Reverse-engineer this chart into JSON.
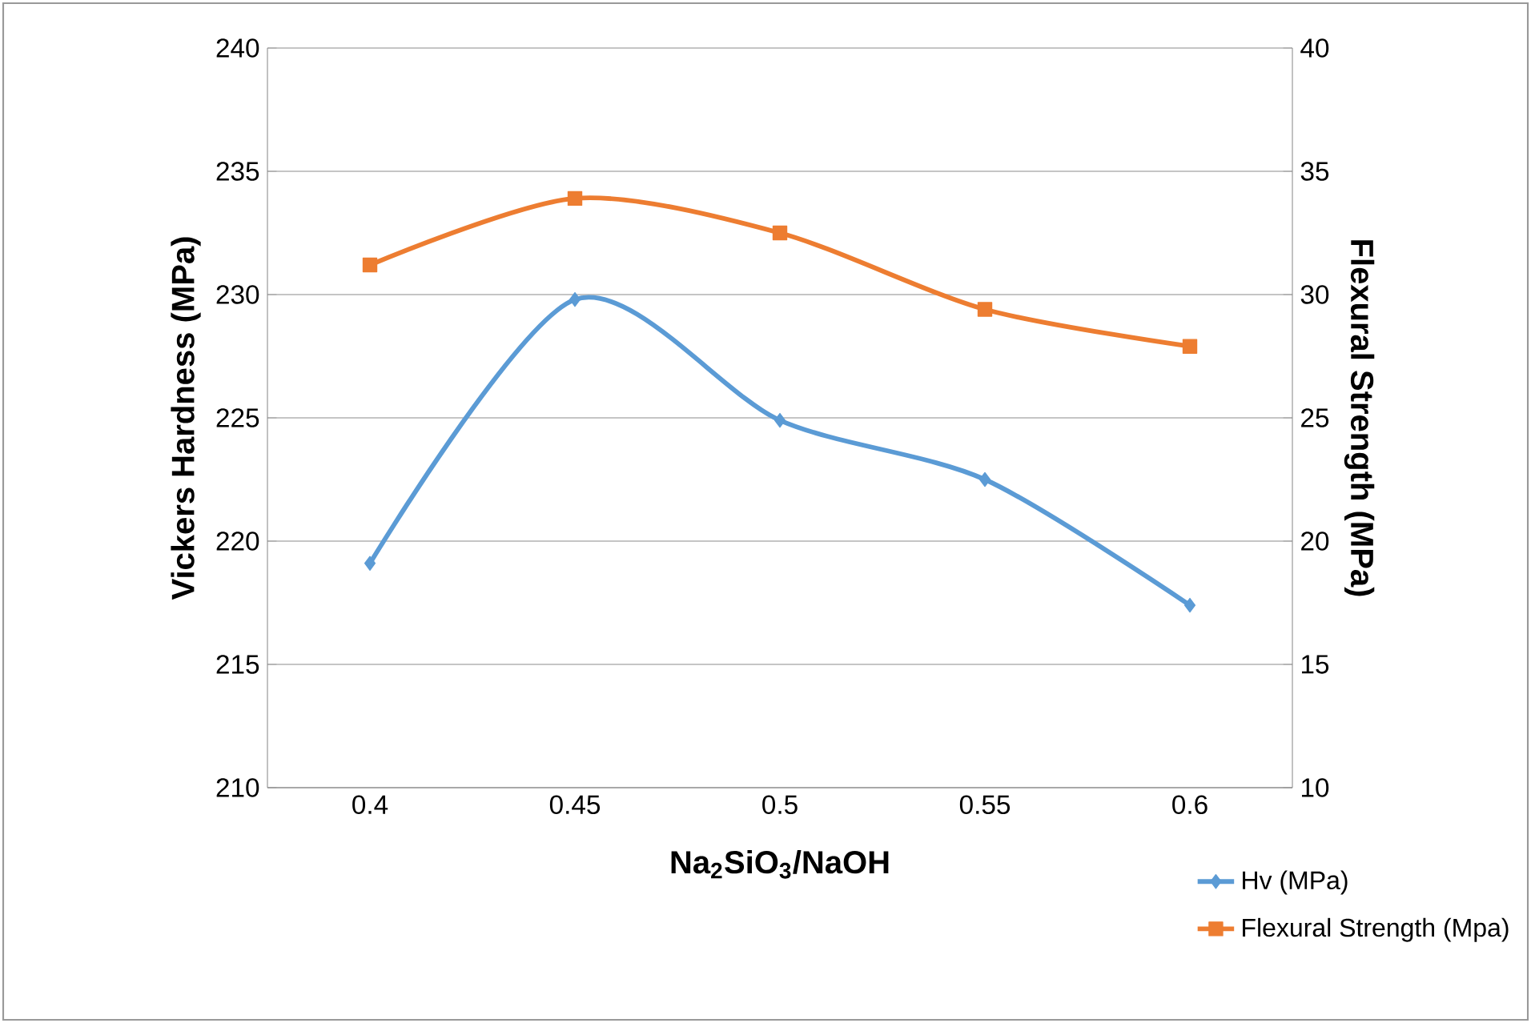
{
  "chart_data": {
    "type": "line",
    "categories": [
      "0.4",
      "0.45",
      "0.5",
      "0.55",
      "0.6"
    ],
    "xlabel": "**Na$_{2}$SiO$_{3}$/NaOH**",
    "ylabel": "**Vickers Hardness (MPa)**",
    "y2label": "**Flexural Strength (MPa)**",
    "ylim": [
      210,
      240
    ],
    "yticks": [
      210,
      215,
      220,
      225,
      230,
      235,
      240
    ],
    "y2lim": [
      10,
      40
    ],
    "y2ticks": [
      10,
      15,
      20,
      25,
      30,
      35,
      40
    ],
    "grid": "y",
    "legend": "bottom right",
    "series": [
      {
        "name": "Hv (MPa)",
        "color": "#5b9bd5",
        "marker": "diamond",
        "values": [
          219.1,
          229.8,
          224.9,
          222.5,
          217.4
        ]
      },
      {
        "name": "Flexural Strength (Mpa)",
        "color": "#ed7d31",
        "marker": "square",
        "axis": "y2",
        "values": [
          31.2,
          33.9,
          32.5,
          29.4,
          27.9
        ]
      }
    ]
  }
}
